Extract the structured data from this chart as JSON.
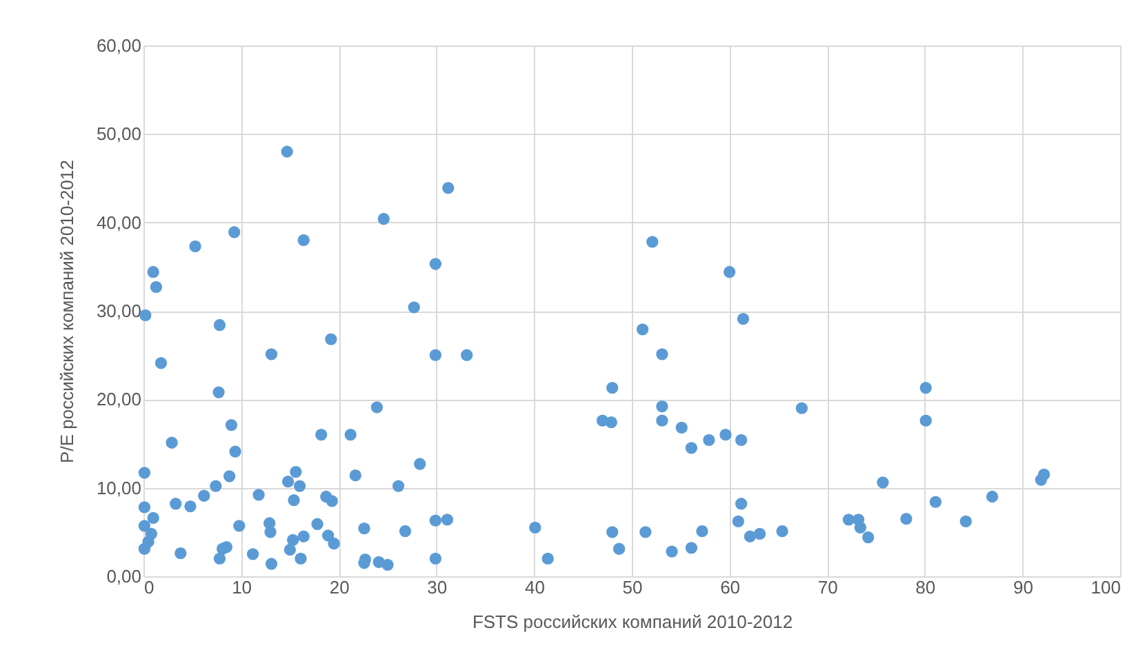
{
  "chart_data": {
    "type": "scatter",
    "xlabel": "FSTS российских компаний 2010-2012",
    "ylabel": "P/E российских компаний 2010-2012",
    "x": [
      14.7,
      1.0,
      1.3,
      0.2,
      1.8,
      2.9,
      0.1,
      0.1,
      0.1,
      1.0,
      0.8,
      0.5,
      0.1,
      3.3,
      3.8,
      5.3,
      4.8,
      6.2,
      7.4,
      7.8,
      7.7,
      9.3,
      9.0,
      9.4,
      8.8,
      8.1,
      8.5,
      7.8,
      9.8,
      11.2,
      11.8,
      13.1,
      12.9,
      13.0,
      13.1,
      14.8,
      15.4,
      15.6,
      16.0,
      16.4,
      16.1,
      15.0,
      15.3,
      16.4,
      17.8,
      18.2,
      18.7,
      18.9,
      19.2,
      19.3,
      19.5,
      21.2,
      21.7,
      22.6,
      22.7,
      22.6,
      23.9,
      24.6,
      24.1,
      25.0,
      26.1,
      26.8,
      27.7,
      28.3,
      29.9,
      29.9,
      29.9,
      29.9,
      31.1,
      31.2,
      33.1,
      52.1,
      60.0,
      61.4,
      51.1,
      53.1,
      48.0,
      47.0,
      47.9,
      53.1,
      53.1,
      55.1,
      56.1,
      57.9,
      59.6,
      61.2,
      61.2,
      60.9,
      62.1,
      63.1,
      40.1,
      41.4,
      48.0,
      48.7,
      51.4,
      54.1,
      56.1,
      57.2,
      67.4,
      80.1,
      80.1,
      75.7,
      92.2,
      91.9,
      65.4,
      72.2,
      73.2,
      73.4,
      74.2,
      78.1,
      81.1,
      84.2,
      86.9
    ],
    "values": [
      48.0,
      34.4,
      32.7,
      29.5,
      24.1,
      15.1,
      11.7,
      7.8,
      5.7,
      6.6,
      4.8,
      3.9,
      3.1,
      8.2,
      2.6,
      37.3,
      7.9,
      9.1,
      10.2,
      28.4,
      20.8,
      38.9,
      17.1,
      14.1,
      11.3,
      3.1,
      3.3,
      2.0,
      5.7,
      2.5,
      9.2,
      25.1,
      6.0,
      5.0,
      1.4,
      10.7,
      8.6,
      11.8,
      10.2,
      4.5,
      2.0,
      3.0,
      4.1,
      38.0,
      5.9,
      16.0,
      9.0,
      4.6,
      26.8,
      8.5,
      3.7,
      16.0,
      11.4,
      5.4,
      1.9,
      1.5,
      19.1,
      40.4,
      1.6,
      1.3,
      10.2,
      5.1,
      30.4,
      12.7,
      35.3,
      25.0,
      6.3,
      2.0,
      6.4,
      43.9,
      25.0,
      37.8,
      34.4,
      29.1,
      27.9,
      25.1,
      21.3,
      17.6,
      17.4,
      19.2,
      17.6,
      16.8,
      14.5,
      15.4,
      16.0,
      15.4,
      8.2,
      6.2,
      4.5,
      4.8,
      5.5,
      2.0,
      5.0,
      3.1,
      5.0,
      2.8,
      3.2,
      5.1,
      19.0,
      21.3,
      17.6,
      10.6,
      11.5,
      10.9,
      5.1,
      6.4,
      6.4,
      5.5,
      4.4,
      6.5,
      8.4,
      6.2,
      9.0
    ],
    "color": "#5b9bd5",
    "marker": "circle",
    "grid": true,
    "xlim": [
      0,
      100
    ],
    "xticks": [
      0,
      10,
      20,
      30,
      40,
      50,
      60,
      70,
      80,
      90,
      100
    ],
    "ylim": [
      0,
      60
    ],
    "yticks": [
      {
        "value": 0,
        "label": "0,00"
      },
      {
        "value": 10,
        "label": "10,00"
      },
      {
        "value": 20,
        "label": "20,00"
      },
      {
        "value": 30,
        "label": "30,00"
      },
      {
        "value": 40,
        "label": "40,00"
      },
      {
        "value": 50,
        "label": "50,00"
      },
      {
        "value": 60,
        "label": "60,00"
      }
    ]
  }
}
